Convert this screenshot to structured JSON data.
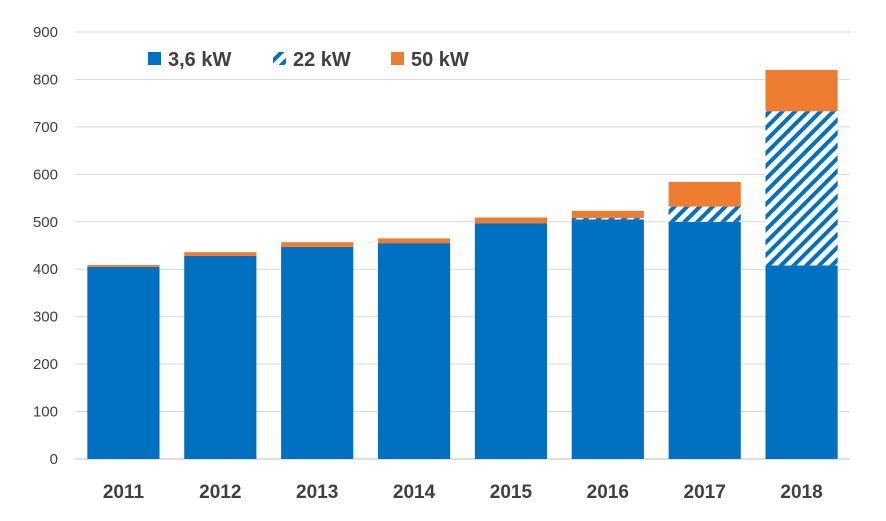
{
  "chart_data": {
    "type": "bar",
    "stacked": true,
    "categories": [
      "2011",
      "2012",
      "2013",
      "2014",
      "2015",
      "2016",
      "2017",
      "2018"
    ],
    "series": [
      {
        "name": "3,6 kW",
        "values": [
          405,
          428,
          447,
          455,
          497,
          505,
          500,
          408
        ],
        "color": "#0070C0",
        "pattern": "solid"
      },
      {
        "name": "22 kW",
        "values": [
          0,
          0,
          0,
          0,
          0,
          3,
          32,
          325
        ],
        "color": "#0070C0",
        "pattern": "hatched"
      },
      {
        "name": "50 kW",
        "values": [
          4,
          8,
          10,
          10,
          12,
          15,
          52,
          87
        ],
        "color": "#ED7D31",
        "pattern": "solid"
      }
    ],
    "ylim": [
      0,
      900
    ],
    "yticks": [
      0,
      100,
      200,
      300,
      400,
      500,
      600,
      700,
      800,
      900
    ],
    "grid": true,
    "legend_position": "top-left",
    "title": "",
    "xlabel": "",
    "ylabel": ""
  }
}
